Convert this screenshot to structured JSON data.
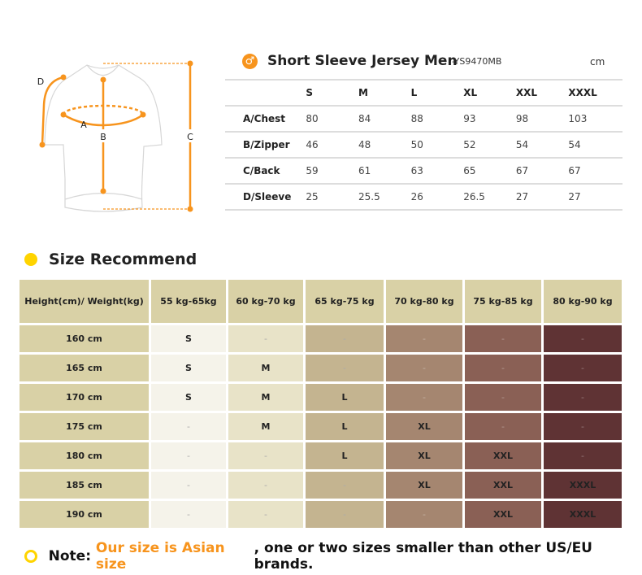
{
  "accent_color": "#f7941d",
  "diagram": {
    "labels": {
      "a": "A",
      "b": "B",
      "c": "C",
      "d": "D"
    }
  },
  "measurement": {
    "icon": "male-icon",
    "title": "Short Sleeve Jersey Men",
    "code": "-YS9470MB",
    "unit": "cm",
    "sizes": [
      "S",
      "M",
      "L",
      "XL",
      "XXL",
      "XXXL"
    ],
    "rows": [
      {
        "label": "A/Chest",
        "values": [
          "80",
          "84",
          "88",
          "93",
          "98",
          "103"
        ]
      },
      {
        "label": "B/Zipper",
        "values": [
          "46",
          "48",
          "50",
          "52",
          "54",
          "54"
        ]
      },
      {
        "label": "C/Back",
        "values": [
          "59",
          "61",
          "63",
          "65",
          "67",
          "67"
        ]
      },
      {
        "label": "D/Sleeve",
        "values": [
          "25",
          "25.5",
          "26",
          "26.5",
          "27",
          "27"
        ]
      }
    ]
  },
  "recommend": {
    "title": "Size Recommend",
    "header": [
      "Height(cm)/ Weight(kg)",
      "55 kg-65kg",
      "60 kg-70 kg",
      "65 kg-75 kg",
      "70 kg-80 kg",
      "75 kg-85 kg",
      "80 kg-90 kg"
    ],
    "column_colors": [
      "#d9d1a6",
      "#f5f3ea",
      "#e8e3c8",
      "#c4b490",
      "#a58670",
      "#8a6055",
      "#5f3334"
    ],
    "header_color": "#d9d1a6",
    "rows": [
      {
        "height": "160 cm",
        "sizes": [
          "S",
          "-",
          "-",
          "-",
          "-",
          "-"
        ]
      },
      {
        "height": "165 cm",
        "sizes": [
          "S",
          "M",
          "-",
          "-",
          "-",
          "-"
        ]
      },
      {
        "height": "170 cm",
        "sizes": [
          "S",
          "M",
          "L",
          "-",
          "-",
          "-"
        ]
      },
      {
        "height": "175 cm",
        "sizes": [
          "-",
          "M",
          "L",
          "XL",
          "-",
          "-"
        ]
      },
      {
        "height": "180 cm",
        "sizes": [
          "-",
          "-",
          "L",
          "XL",
          "XXL",
          "-"
        ]
      },
      {
        "height": "185 cm",
        "sizes": [
          "-",
          "-",
          "-",
          "XL",
          "XXL",
          "XXXL"
        ]
      },
      {
        "height": "190 cm",
        "sizes": [
          "-",
          "-",
          "-",
          "-",
          "XXL",
          "XXXL"
        ]
      }
    ]
  },
  "note": {
    "prefix": "Note: ",
    "highlight": "Our size is Asian size",
    "rest": ", one or two sizes smaller than other US/EU brands."
  }
}
